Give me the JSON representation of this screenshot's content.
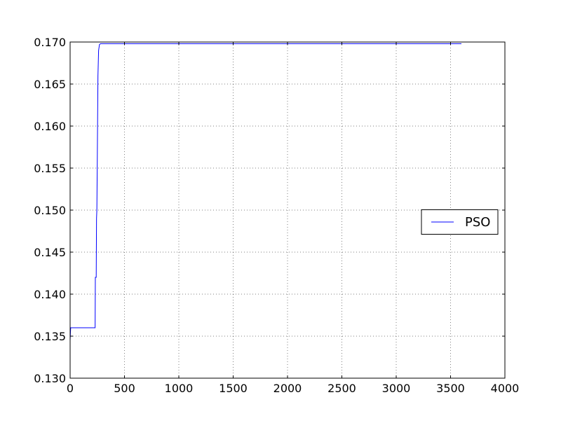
{
  "chart_data": {
    "type": "line",
    "title": "",
    "xlabel": "",
    "ylabel": "",
    "xlim": [
      0,
      4000
    ],
    "ylim": [
      0.13,
      0.17
    ],
    "x_ticks": [
      0,
      500,
      1000,
      1500,
      2000,
      2500,
      3000,
      3500,
      4000
    ],
    "x_tick_labels": [
      "0",
      "500",
      "1000",
      "1500",
      "2000",
      "2500",
      "3000",
      "3500",
      "4000"
    ],
    "y_ticks": [
      0.13,
      0.135,
      0.14,
      0.145,
      0.15,
      0.155,
      0.16,
      0.165,
      0.17
    ],
    "y_tick_labels": [
      "0.130",
      "0.135",
      "0.140",
      "0.145",
      "0.150",
      "0.155",
      "0.160",
      "0.165",
      "0.170"
    ],
    "grid": true,
    "legend_position": "center-right",
    "series": [
      {
        "name": "PSO",
        "color": "#0000ff",
        "x": [
          0,
          5,
          10,
          230,
          232,
          235,
          240,
          243,
          246,
          250,
          256,
          262,
          270,
          280,
          300,
          320,
          400,
          1000,
          2000,
          3000,
          3600
        ],
        "y": [
          0.1345,
          0.136,
          0.136,
          0.136,
          0.142,
          0.142,
          0.142,
          0.149,
          0.15,
          0.156,
          0.166,
          0.169,
          0.1697,
          0.1698,
          0.1698,
          0.1698,
          0.1698,
          0.1698,
          0.1698,
          0.1698,
          0.1698
        ]
      }
    ]
  }
}
